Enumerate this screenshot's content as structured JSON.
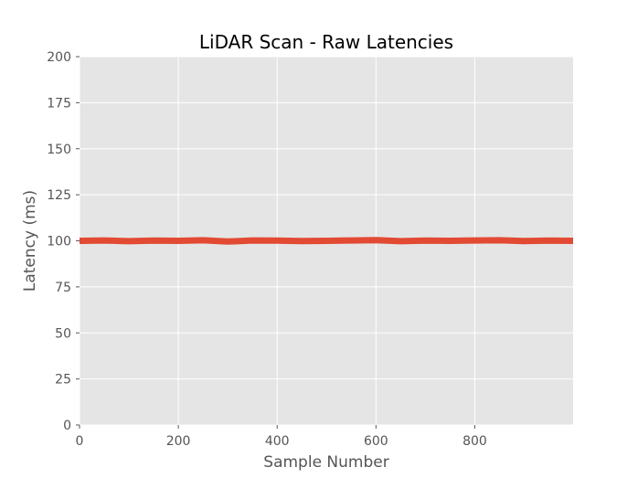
{
  "chart_data": {
    "type": "line",
    "title": "LiDAR Scan - Raw Latencies",
    "xlabel": "Sample Number",
    "ylabel": "Latency (ms)",
    "xlim": [
      0,
      999
    ],
    "ylim": [
      0,
      200
    ],
    "x_ticks": [
      0,
      200,
      400,
      600,
      800
    ],
    "y_ticks": [
      0,
      25,
      50,
      75,
      100,
      125,
      150,
      175,
      200
    ],
    "grid": true,
    "series": [
      {
        "color": "#e24a33",
        "x": [
          0,
          50,
          100,
          150,
          200,
          250,
          300,
          350,
          400,
          450,
          500,
          550,
          600,
          650,
          700,
          750,
          800,
          850,
          900,
          950,
          999
        ],
        "y": [
          100,
          100.2,
          99.8,
          100.1,
          100,
          100.3,
          99.6,
          100.2,
          100.1,
          99.9,
          100,
          100.2,
          100.4,
          99.8,
          100.1,
          100,
          100.2,
          100.3,
          99.9,
          100.1,
          100
        ]
      }
    ],
    "colors": {
      "plot_background": "#e5e5e5",
      "grid": "#ffffff",
      "tick_text": "#555555",
      "title_text": "#000000"
    }
  }
}
